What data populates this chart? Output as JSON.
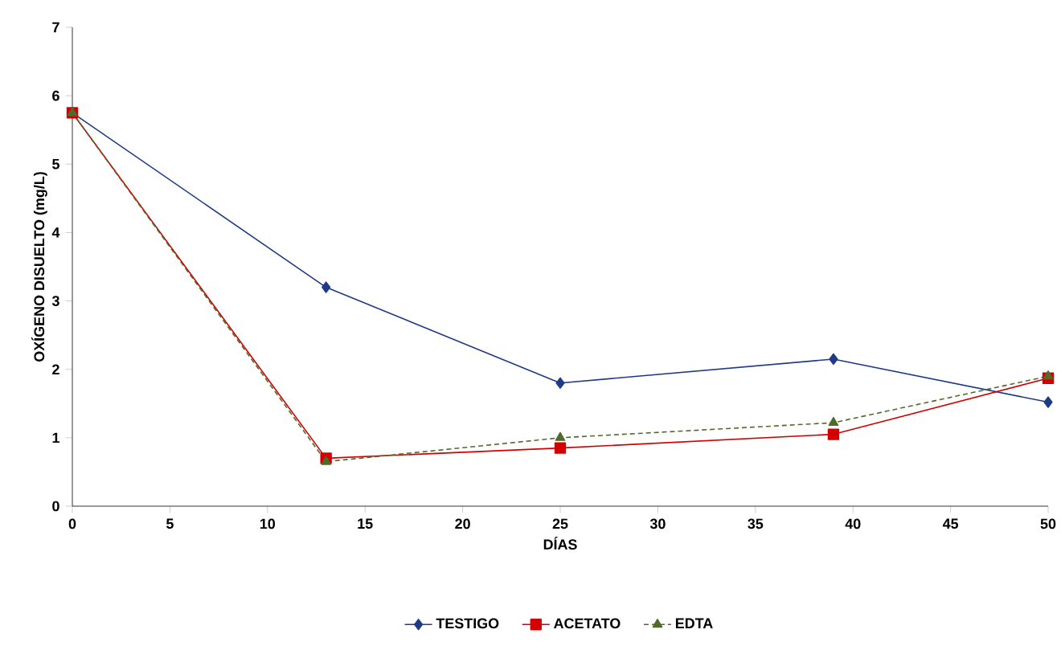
{
  "chart_data": {
    "type": "line",
    "xlabel": "DÍAS",
    "ylabel": "OXÍGENO DISUELTO (mg/L)",
    "x": [
      0,
      13,
      25,
      39,
      50
    ],
    "series": [
      {
        "name": "TESTIGO",
        "color": "#1f3a87",
        "marker": "diamond",
        "line_style": "solid",
        "values": [
          5.75,
          3.2,
          1.8,
          2.15,
          1.52
        ]
      },
      {
        "name": "ACETATO",
        "color": "#d40000",
        "marker": "square",
        "line_style": "solid",
        "values": [
          5.75,
          0.7,
          0.85,
          1.05,
          1.87
        ]
      },
      {
        "name": "EDTA",
        "color": "#4f6b2a",
        "marker": "triangle",
        "line_style": "dashed",
        "values": [
          5.75,
          0.65,
          1.0,
          1.22,
          1.9
        ]
      }
    ],
    "xlim": [
      0,
      50
    ],
    "xticks": [
      0,
      5,
      10,
      15,
      20,
      25,
      30,
      35,
      40,
      45,
      50
    ],
    "ylim": [
      0,
      7
    ],
    "yticks": [
      0,
      1,
      2,
      3,
      4,
      5,
      6,
      7
    ],
    "grid": false,
    "legend": "bottom"
  }
}
